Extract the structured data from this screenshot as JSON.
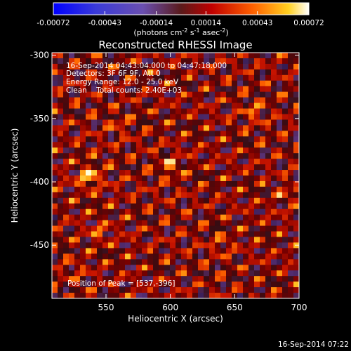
{
  "chart_data": {
    "type": "heatmap",
    "title": "Reconstructed RHESSI Image",
    "xlabel": "Heliocentric X (arcsec)",
    "ylabel": "Heliocentric Y (arcsec)",
    "xlim": [
      508,
      700
    ],
    "ylim": [
      -492,
      -298
    ],
    "x_ticks": [
      550,
      600,
      650,
      700
    ],
    "y_ticks": [
      -300,
      -350,
      -400,
      -450
    ],
    "colorbar": {
      "ticks": [
        "-0.00072",
        "-0.00043",
        "-0.00014",
        "0.00014",
        "0.00043",
        "0.00072"
      ],
      "range": [
        -0.00072,
        0.00072
      ],
      "label_parts": [
        "(photons cm",
        "-2",
        " s",
        "-1",
        " asec",
        "-2",
        ")"
      ]
    },
    "info_lines": [
      "16-Sep-2014 04:43:04.000 to 04:47:18.000",
      "Detectors: 3F 6F 9F, Att 0",
      "Energy Range: 12.0 - 25.0 keV",
      "Clean    Total counts: 2.40E+03"
    ],
    "peak_text": "Position of Peak = [537,-396]",
    "peak": [
      537,
      -396
    ],
    "timestamp": "16-Sep-2014 07:22",
    "grid": false
  }
}
